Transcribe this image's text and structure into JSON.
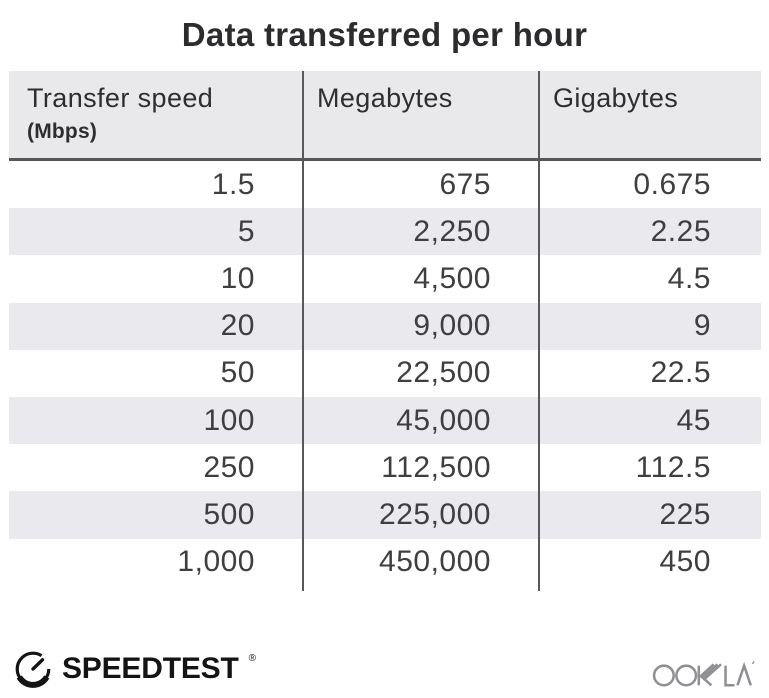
{
  "title": "Data transferred per hour",
  "table": {
    "header": {
      "col1_label": "Transfer speed",
      "col1_sublabel": "(Mbps)",
      "col2_label": "Megabytes",
      "col3_label": "Gigabytes"
    },
    "rows": [
      [
        "1.5",
        "675",
        "0.675"
      ],
      [
        "5",
        "2,250",
        "2.25"
      ],
      [
        "10",
        "4,500",
        "4.5"
      ],
      [
        "20",
        "9,000",
        "9"
      ],
      [
        "50",
        "22,500",
        "22.5"
      ],
      [
        "100",
        "45,000",
        "45"
      ],
      [
        "250",
        "112,500",
        "112.5"
      ],
      [
        "500",
        "225,000",
        "225"
      ],
      [
        "1,000",
        "450,000",
        "450"
      ]
    ]
  },
  "footer": {
    "speedtest_label": "SPEEDTEST",
    "speedtest_trademark": "®",
    "ookla_label": "OOKLA"
  },
  "colors": {
    "header_bg": "#e9e9ec",
    "stripe_bg": "#e9e9ee",
    "divider": "#58585a",
    "title_text": "#2c2c2e",
    "number_text": "#3f3f42",
    "speedtest_black": "#141414",
    "ookla_gray": "#909094"
  },
  "chart_data": {
    "type": "table",
    "title": "Data transferred per hour",
    "columns": [
      "Transfer speed (Mbps)",
      "Megabytes",
      "Gigabytes"
    ],
    "rows": [
      [
        1.5,
        675,
        0.675
      ],
      [
        5,
        2250,
        2.25
      ],
      [
        10,
        4500,
        4.5
      ],
      [
        20,
        9000,
        9
      ],
      [
        50,
        22500,
        22.5
      ],
      [
        100,
        45000,
        45
      ],
      [
        250,
        112500,
        112.5
      ],
      [
        500,
        225000,
        225
      ],
      [
        1000,
        450000,
        450
      ]
    ]
  }
}
